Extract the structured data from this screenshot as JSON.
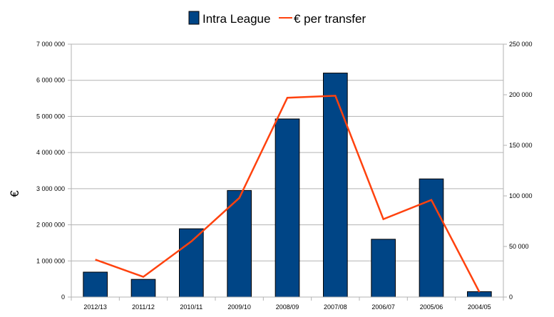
{
  "chart_data": {
    "type": "bar",
    "title": "",
    "categories": [
      "2012/13",
      "2011/12",
      "2010/11",
      "2009/10",
      "2008/09",
      "2007/08",
      "2006/07",
      "2005/06",
      "2004/05"
    ],
    "series": [
      {
        "name": "Intra League",
        "type": "bar",
        "axis": "left",
        "color": "#004586",
        "values": [
          690000,
          490000,
          1890000,
          2950000,
          4930000,
          6200000,
          1600000,
          3270000,
          150000
        ]
      },
      {
        "name": "€ per transfer",
        "type": "line",
        "axis": "right",
        "color": "#ff420e",
        "values": [
          37000,
          20000,
          55000,
          98000,
          197000,
          199000,
          77000,
          96000,
          5000
        ]
      }
    ],
    "ylabel": "€",
    "xlabel": "",
    "ylim": [
      0,
      7000000
    ],
    "y2lim": [
      0,
      250000
    ],
    "yticks": [
      "0",
      "1 000 000",
      "2 000 000",
      "3 000 000",
      "4 000 000",
      "5 000 000",
      "6 000 000",
      "7 000 000"
    ],
    "y2ticks": [
      "0",
      "50 000",
      "100 000",
      "150 000",
      "200 000",
      "250 000"
    ],
    "grid": true,
    "legend_position": "top"
  },
  "legend": {
    "bar_label": "Intra League",
    "line_label": "€ per transfer"
  }
}
